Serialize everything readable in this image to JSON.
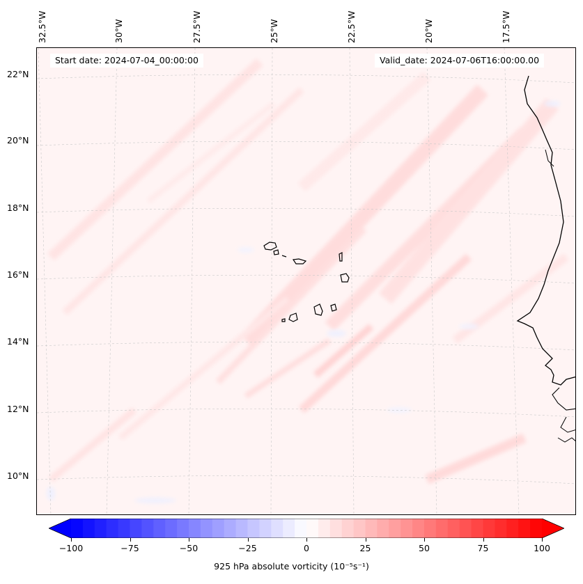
{
  "map": {
    "start_date": "Start date: 2024-07-04_00:00:00",
    "valid_date": "Valid_date: 2024-07-06T16:00:00.00",
    "longitude_labels": [
      "32.5°W",
      "30°W",
      "27.5°W",
      "25°W",
      "22.5°W",
      "20°W",
      "17.5°W"
    ],
    "latitude_labels": [
      "22°N",
      "20°N",
      "18°N",
      "16°N",
      "14°N",
      "12°N",
      "10°N"
    ],
    "variable": "925 hPa absolute vorticity",
    "units": "10⁻⁵s⁻¹"
  },
  "colorbar": {
    "label": "925 hPa absolute vorticity (10⁻⁵s⁻¹)",
    "min": -100,
    "max": 100,
    "ticks": [
      "−100",
      "−75",
      "−50",
      "−25",
      "0",
      "25",
      "50",
      "75",
      "100"
    ],
    "tick_values": [
      -100,
      -75,
      -50,
      -25,
      0,
      25,
      50,
      75,
      100
    ],
    "levels": 40,
    "colormap": "bwr",
    "neg_color": "#0000ff",
    "mid_color": "#ffffff",
    "pos_color": "#ff0000"
  }
}
